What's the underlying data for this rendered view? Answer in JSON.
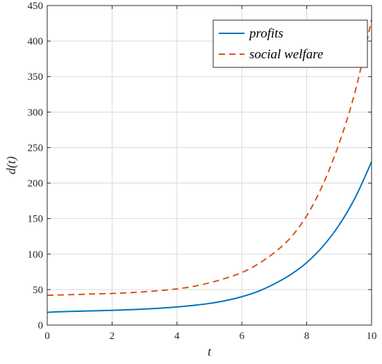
{
  "chart_data": {
    "type": "line",
    "title": "",
    "xlabel": "t",
    "ylabel": "d(t)",
    "xlim": [
      0,
      10
    ],
    "ylim": [
      0,
      450
    ],
    "xticks": [
      0,
      2,
      4,
      6,
      8,
      10
    ],
    "yticks": [
      0,
      50,
      100,
      150,
      200,
      250,
      300,
      350,
      400,
      450
    ],
    "grid": true,
    "legend": "top-right",
    "series": [
      {
        "name": "profits",
        "style": "solid",
        "color": "#0072bd",
        "x": [
          0,
          0.5,
          1,
          1.5,
          2,
          2.5,
          3,
          3.5,
          4,
          4.5,
          5,
          5.5,
          6,
          6.5,
          7,
          7.5,
          8,
          8.5,
          9,
          9.5,
          10
        ],
        "y": [
          18,
          19,
          19.6,
          20.2,
          20.8,
          21.6,
          22.6,
          23.9,
          25.5,
          27.7,
          30.5,
          34.5,
          40,
          47.5,
          58,
          71,
          88,
          111,
          141,
          180,
          230
        ]
      },
      {
        "name": "social welfare",
        "style": "dashed",
        "color": "#d95319",
        "x": [
          0,
          0.5,
          1,
          1.5,
          2,
          2.5,
          3,
          3.5,
          4,
          4.5,
          5,
          5.5,
          6,
          6.5,
          7,
          7.5,
          8,
          8.5,
          9,
          9.5,
          10
        ],
        "y": [
          42,
          42.6,
          43.2,
          43.9,
          44.5,
          45.6,
          46.9,
          48.7,
          51,
          54.5,
          59.5,
          66,
          74,
          86,
          102,
          123,
          154,
          198,
          256,
          330,
          430
        ]
      }
    ]
  }
}
